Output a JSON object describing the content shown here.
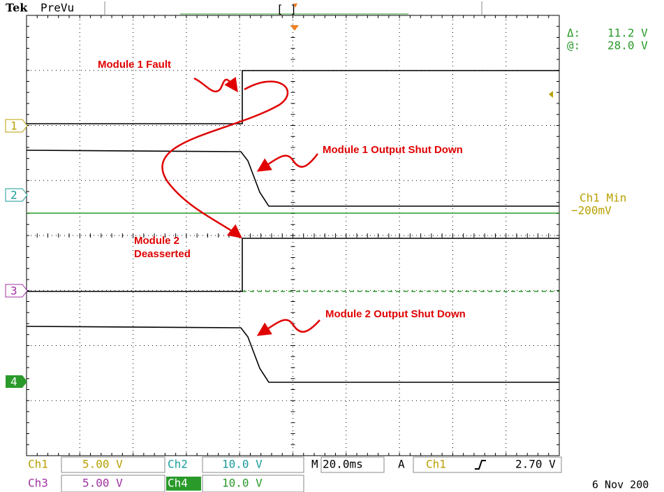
{
  "header": {
    "brand": "Tek",
    "mode": "PreVu"
  },
  "readout": {
    "delta_label": "Δ:",
    "delta_value": "11.2 V",
    "at_label": "@:",
    "at_value": "28.0 V",
    "measure_label": "Ch1 Min",
    "measure_value": "−200mV"
  },
  "channel_markers": [
    "1",
    "2",
    "3",
    "4"
  ],
  "annotations": {
    "module1_fault": "Module 1 Fault",
    "module1_shutdown": "Module 1 Output Shut Down",
    "module2_deasserted": [
      "Module 2",
      "Deasserted"
    ],
    "module2_shutdown": "Module 2 Output Shut Down"
  },
  "status": {
    "ch1": {
      "label": "Ch1",
      "scale": "5.00 V"
    },
    "ch2": {
      "label": "Ch2",
      "scale": "10.0 V"
    },
    "ch3": {
      "label": "Ch3",
      "scale": "5.00 V"
    },
    "ch4": {
      "label": "Ch4",
      "scale": "10.0 V"
    },
    "timebase": {
      "label": "M",
      "value": "20.0ms"
    },
    "trigger": {
      "label": "A",
      "source": "Ch1",
      "level": "2.70 V"
    }
  },
  "date": "6 Nov 200"
}
